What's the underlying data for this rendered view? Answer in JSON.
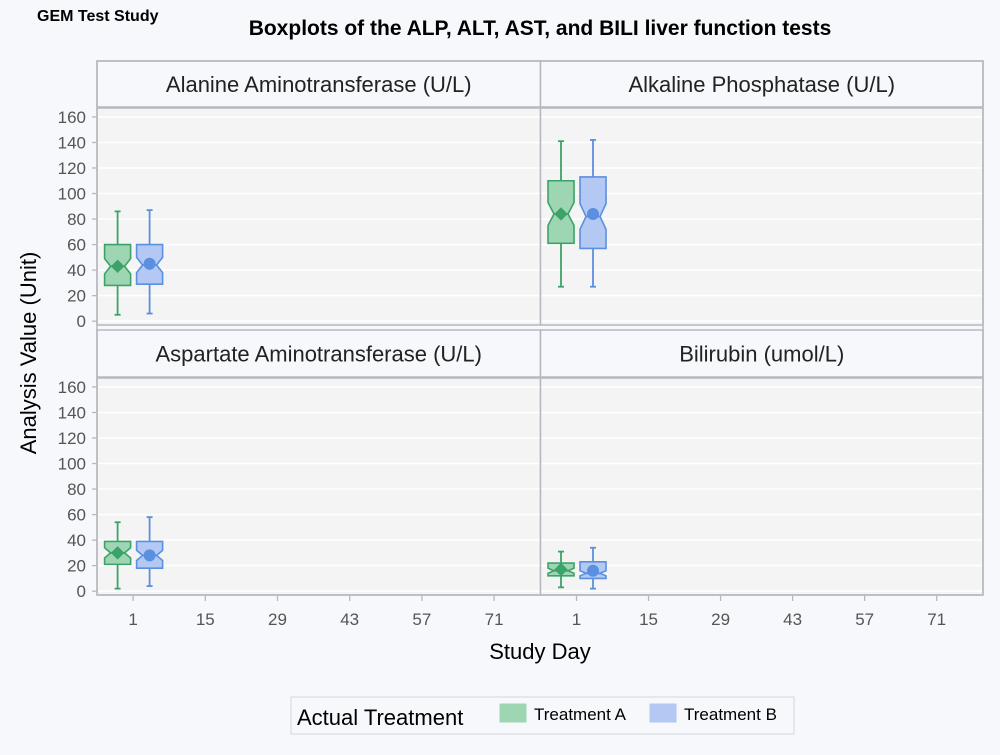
{
  "page": {
    "study_label": "GEM Test Study",
    "title": "Boxplots of the ALP, ALT, AST, and BILI liver function tests"
  },
  "chart_data": {
    "type": "boxplot",
    "xlabel": "Study Day",
    "ylabel": "Analysis Value (Unit)",
    "x_ticks": [
      1,
      15,
      29,
      43,
      57,
      71
    ],
    "y_ticks": [
      0,
      20,
      40,
      60,
      80,
      100,
      120,
      140,
      160
    ],
    "ylim": [
      -3,
      167
    ],
    "grid": true,
    "legend": {
      "title": "Actual Treatment",
      "placement": "bottom",
      "items": [
        {
          "name": "Treatment A",
          "fill": "#9ED6B4",
          "stroke": "#3CA368"
        },
        {
          "name": "Treatment B",
          "fill": "#B3C9F3",
          "stroke": "#5B8FE0"
        }
      ]
    },
    "colors": {
      "panel_bg": "#F4F4F4",
      "page_bg": "#F7F8FC",
      "strip_bg": "#F7F8FC",
      "grid": "#FFFFFF",
      "border": "#B5B8BE",
      "axis_text": "#555555",
      "title_text": "#000000"
    },
    "panels": [
      {
        "title": "Alanine Aminotransferase (U/L)",
        "boxes": [
          {
            "series": "Treatment A",
            "day": 1,
            "min": 5,
            "q1": 28,
            "median": 43,
            "q3": 60,
            "max": 86,
            "mean": 43,
            "notch_low": 37,
            "notch_high": 49
          },
          {
            "series": "Treatment B",
            "day": 1,
            "min": 6,
            "q1": 29,
            "median": 44,
            "q3": 60,
            "max": 87,
            "mean": 45,
            "notch_low": 38,
            "notch_high": 50
          }
        ]
      },
      {
        "title": "Alkaline Phosphatase (U/L)",
        "boxes": [
          {
            "series": "Treatment A",
            "day": 1,
            "min": 27,
            "q1": 61,
            "median": 84,
            "q3": 110,
            "max": 141,
            "mean": 84,
            "notch_low": 75,
            "notch_high": 93
          },
          {
            "series": "Treatment B",
            "day": 1,
            "min": 27,
            "q1": 57,
            "median": 82,
            "q3": 113,
            "max": 142,
            "mean": 84,
            "notch_low": 72,
            "notch_high": 92
          }
        ]
      },
      {
        "title": "Aspartate Aminotransferase (U/L)",
        "boxes": [
          {
            "series": "Treatment A",
            "day": 1,
            "min": 2,
            "q1": 21,
            "median": 30,
            "q3": 39,
            "max": 54,
            "mean": 30,
            "notch_low": 26,
            "notch_high": 34
          },
          {
            "series": "Treatment B",
            "day": 1,
            "min": 4,
            "q1": 18,
            "median": 28,
            "q3": 39,
            "max": 58,
            "mean": 28,
            "notch_low": 24,
            "notch_high": 32
          }
        ]
      },
      {
        "title": "Bilirubin (umol/L)",
        "boxes": [
          {
            "series": "Treatment A",
            "day": 1,
            "min": 3,
            "q1": 12,
            "median": 16,
            "q3": 22,
            "max": 31,
            "mean": 17,
            "notch_low": 14,
            "notch_high": 18
          },
          {
            "series": "Treatment B",
            "day": 1,
            "min": 2,
            "q1": 10,
            "median": 14,
            "q3": 23,
            "max": 34,
            "mean": 16,
            "notch_low": 12,
            "notch_high": 16
          }
        ]
      }
    ]
  }
}
